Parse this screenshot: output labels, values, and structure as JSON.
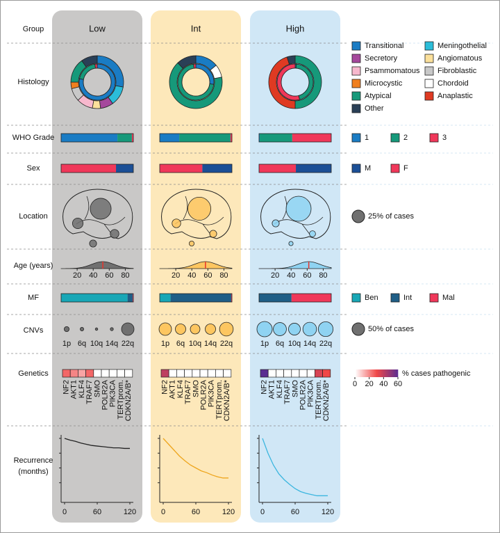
{
  "rows": [
    "Group",
    "Histology",
    "WHO Grade",
    "Sex",
    "Location",
    "Age (years)",
    "MF",
    "CNVs",
    "Genetics",
    [
      "Recurrence",
      "(months)"
    ]
  ],
  "histology_types": [
    {
      "name": "Transitional",
      "color": "#1a7cc4"
    },
    {
      "name": "Meningothelial",
      "color": "#2bbdd9"
    },
    {
      "name": "Secretory",
      "color": "#a5489c"
    },
    {
      "name": "Angiomatous",
      "color": "#fbe09b"
    },
    {
      "name": "Psammomatous",
      "color": "#f7b8cd"
    },
    {
      "name": "Fibroblastic",
      "color": "#c8c8c8"
    },
    {
      "name": "Microcystic",
      "color": "#f07f1e"
    },
    {
      "name": "Chordoid",
      "color": "#ffffff"
    },
    {
      "name": "Atypical",
      "color": "#16997a"
    },
    {
      "name": "Anaplastic",
      "color": "#df3a22"
    },
    {
      "name": "Other",
      "color": "#2a3f56"
    }
  ],
  "grade_legend": {
    "labels": [
      "1",
      "2",
      "3"
    ],
    "colors": [
      "#1a7cc4",
      "#16997a",
      "#f0385a"
    ]
  },
  "sex_legend": {
    "labels": [
      "M",
      "F"
    ],
    "colors": [
      "#1b4f96",
      "#f0385a"
    ]
  },
  "mf_legend": {
    "labels": [
      "Ben",
      "Int",
      "Mal"
    ],
    "colors": [
      "#18a7b6",
      "#1f5e86",
      "#f0385a"
    ]
  },
  "location_legend": {
    "value": 25,
    "label": "25% of cases"
  },
  "cnv_legend": {
    "value": 50,
    "label": "50% of cases"
  },
  "genetics_legend": {
    "label": "% cases pathogenic",
    "ticks": [
      0,
      20,
      40,
      60
    ],
    "colors": [
      "#ffffff",
      "#f04848",
      "#5a2d91"
    ]
  },
  "age_axis": {
    "xlim": [
      0,
      90
    ],
    "xticks": [
      20,
      40,
      60,
      80
    ]
  },
  "cnv_arms": [
    "1p",
    "6q",
    "10q",
    "14q",
    "22q"
  ],
  "genes": [
    "NF2",
    "AKT1",
    "KLF4",
    "TRAF7",
    "SMO",
    "POLR2A",
    "PIK3CA",
    "TERTprom.",
    "CDKN2A/B*"
  ],
  "recurrence_axis": {
    "xlim": [
      0,
      120
    ],
    "xticks": [
      0,
      60,
      120
    ],
    "ylim": [
      0,
      100
    ],
    "yticks": [
      25,
      50,
      75,
      100
    ],
    "x": [
      0,
      10,
      20,
      30,
      40,
      50,
      60,
      70,
      80,
      90,
      100,
      110,
      120
    ]
  },
  "groups": [
    {
      "name": "Low",
      "panel_color": "#c9c8c7",
      "circle_color": "#707070",
      "line_color": "#222222",
      "histology": [
        28,
        12,
        8,
        5,
        10,
        8,
        4,
        0,
        15,
        0,
        10
      ],
      "grade": [
        78,
        20,
        2
      ],
      "sex": [
        24,
        76
      ],
      "location": [
        70,
        18,
        12,
        8
      ],
      "age_median": 52,
      "mf": [
        92,
        7,
        1
      ],
      "cnv": [
        8,
        4,
        2,
        3,
        50
      ],
      "genetics": [
        25,
        20,
        15,
        25,
        0,
        0,
        0,
        0,
        0
      ],
      "recurrence": [
        100,
        97,
        95,
        92,
        90,
        88,
        87,
        86,
        85,
        84,
        84,
        83,
        83
      ]
    },
    {
      "name": "Int",
      "panel_color": "#fde8ba",
      "circle_color": "#fdc660",
      "line_color": "#eea51c",
      "histology": [
        14,
        0,
        0,
        0,
        0,
        0,
        0,
        8,
        66,
        0,
        12
      ],
      "grade": [
        27,
        71,
        2
      ],
      "sex": [
        41,
        59
      ],
      "location": [
        85,
        12,
        8,
        4
      ],
      "age_median": 57,
      "mf": [
        15,
        84,
        1
      ],
      "cnv": [
        50,
        35,
        30,
        35,
        60
      ],
      "genetics": [
        40,
        0,
        0,
        0,
        0,
        0,
        0,
        0,
        0
      ],
      "recurrence": [
        100,
        90,
        80,
        70,
        62,
        55,
        50,
        45,
        42,
        38,
        35,
        33,
        33
      ]
    },
    {
      "name": "High",
      "panel_color": "#d0e7f6",
      "circle_color": "#8fd3f2",
      "line_color": "#3bb6df",
      "histology": [
        0,
        0,
        0,
        0,
        0,
        0,
        0,
        0,
        50,
        45,
        5
      ],
      "grade": [
        1,
        45,
        54
      ],
      "sex": [
        49,
        51
      ],
      "location": [
        100,
        8,
        6,
        3
      ],
      "age_median": 62,
      "mf": [
        0,
        45,
        55
      ],
      "cnv": [
        75,
        55,
        45,
        60,
        70
      ],
      "genetics": [
        60,
        0,
        0,
        0,
        0,
        0,
        0,
        35,
        30
      ],
      "recurrence": [
        100,
        75,
        55,
        40,
        30,
        22,
        15,
        10,
        7,
        5,
        3,
        3,
        3
      ]
    }
  ]
}
